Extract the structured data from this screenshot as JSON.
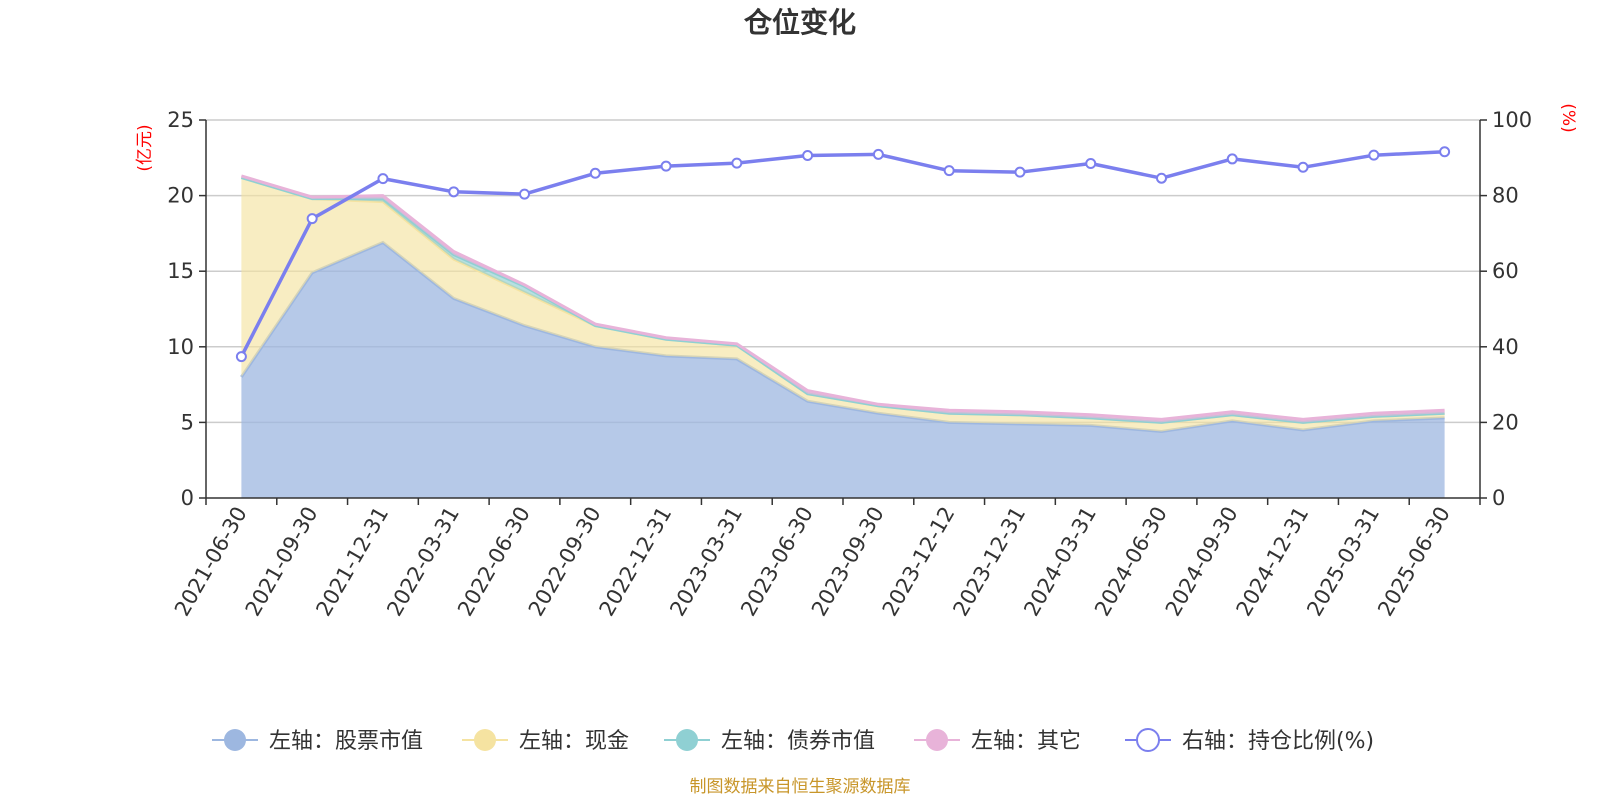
{
  "chart_data": {
    "type": "area",
    "title": "仓位变化",
    "source": "制图数据来自恒生聚源数据库",
    "categories": [
      "2021-06-30",
      "2021-09-30",
      "2021-12-31",
      "2022-03-31",
      "2022-06-30",
      "2022-09-30",
      "2022-12-31",
      "2023-03-31",
      "2023-06-30",
      "2023-09-30",
      "2023-12-12",
      "2023-12-31",
      "2024-03-31",
      "2024-06-30",
      "2024-09-30",
      "2024-12-31",
      "2025-03-31",
      "2025-06-30"
    ],
    "left_axis": {
      "unit": "(亿元)",
      "ylim": [
        0,
        25
      ],
      "ticks": [
        "0",
        "5",
        "10",
        "15",
        "20",
        "25"
      ]
    },
    "right_axis": {
      "unit": "(%)",
      "ylim": [
        0,
        100
      ],
      "ticks": [
        "0",
        "20",
        "40",
        "60",
        "80",
        "100"
      ]
    },
    "series": [
      {
        "name": "左轴：股票市值",
        "axis": "left",
        "stacked": true,
        "color": "#9db7e0",
        "values": [
          8.0,
          14.9,
          16.9,
          13.2,
          11.4,
          10.0,
          9.4,
          9.2,
          6.4,
          5.6,
          5.0,
          4.9,
          4.8,
          4.4,
          5.1,
          4.5,
          5.1,
          5.3
        ]
      },
      {
        "name": "左轴：现金",
        "axis": "left",
        "stacked": true,
        "color": "#f5e3a1",
        "values": [
          13.2,
          4.9,
          2.7,
          2.6,
          2.2,
          1.4,
          1.1,
          0.9,
          0.5,
          0.5,
          0.6,
          0.6,
          0.5,
          0.6,
          0.4,
          0.5,
          0.3,
          0.3
        ]
      },
      {
        "name": "左轴：债券市值",
        "axis": "left",
        "stacked": true,
        "color": "#8fd0d3",
        "values": [
          0.0,
          0.0,
          0.2,
          0.3,
          0.4,
          0.0,
          0.0,
          0.0,
          0.0,
          0.0,
          0.0,
          0.0,
          0.0,
          0.0,
          0.0,
          0.0,
          0.0,
          0.0
        ]
      },
      {
        "name": "左轴：其它",
        "axis": "left",
        "stacked": true,
        "color": "#e8b3d9",
        "values": [
          0.1,
          0.1,
          0.2,
          0.2,
          0.1,
          0.1,
          0.1,
          0.1,
          0.2,
          0.1,
          0.2,
          0.2,
          0.2,
          0.2,
          0.2,
          0.2,
          0.2,
          0.2
        ]
      },
      {
        "name": "右轴：持仓比例(%)",
        "axis": "right",
        "type": "line",
        "color": "#7b7fee",
        "values": [
          37.4,
          73.9,
          84.5,
          81.0,
          80.4,
          85.9,
          87.8,
          88.6,
          90.6,
          90.9,
          86.6,
          86.2,
          88.5,
          84.6,
          89.7,
          87.5,
          90.7,
          91.6
        ]
      }
    ]
  }
}
